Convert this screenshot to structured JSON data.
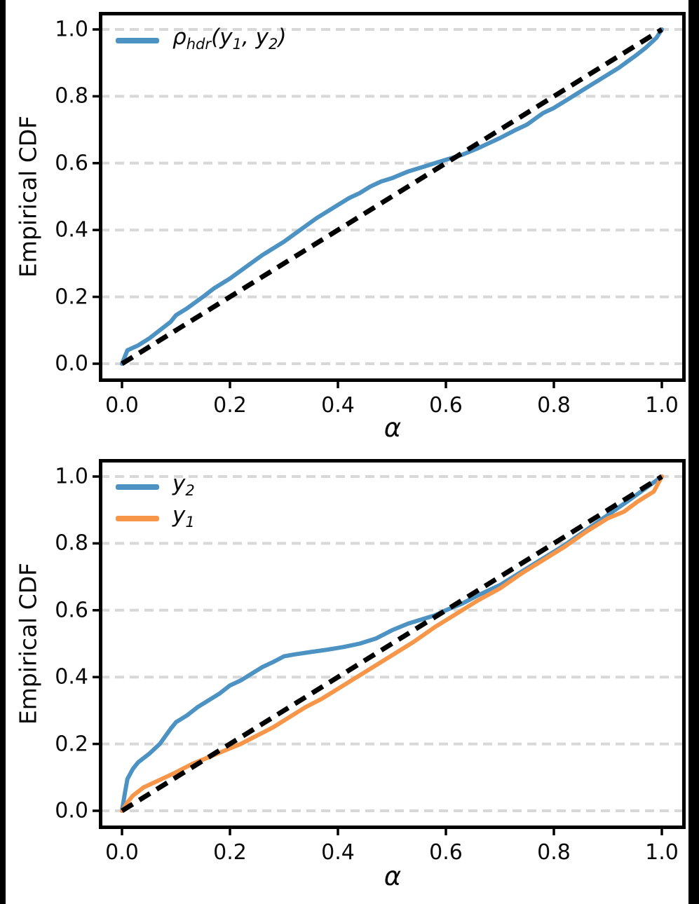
{
  "figure": {
    "background": "#ffffff",
    "border_color": "#000000",
    "grid_color": "#d8d8d8",
    "axis_color": "#000000",
    "text_color": "#0a0a0a"
  },
  "chart_data": [
    {
      "type": "line",
      "title": "",
      "xlabel": "α",
      "ylabel": "Empirical CDF",
      "xlim": [
        0,
        1
      ],
      "ylim": [
        0,
        1
      ],
      "grid": "horizontal-dashed",
      "x_ticks": [
        0.0,
        0.2,
        0.4,
        0.6,
        0.8,
        1.0
      ],
      "x_tick_labels": [
        "0.0",
        "0.2",
        "0.4",
        "0.6",
        "0.8",
        "1.0"
      ],
      "y_ticks": [
        0.0,
        0.2,
        0.4,
        0.6,
        0.8,
        1.0
      ],
      "y_tick_labels": [
        "0.0",
        "0.2",
        "0.4",
        "0.6",
        "0.8",
        "1.0"
      ],
      "legend_position": "upper left",
      "reference_line": {
        "name": "diagonal",
        "style": "dashed",
        "color": "#000000",
        "from": [
          0,
          0
        ],
        "to": [
          1,
          1
        ]
      },
      "series": [
        {
          "name": "rho_hdr",
          "label": "ρ_{hdr}(y_{1}, y_{2})",
          "color": "#4c92c3",
          "x": [
            0.0,
            0.01,
            0.03,
            0.05,
            0.07,
            0.09,
            0.1,
            0.12,
            0.15,
            0.17,
            0.2,
            0.23,
            0.26,
            0.3,
            0.33,
            0.36,
            0.4,
            0.42,
            0.44,
            0.46,
            0.48,
            0.5,
            0.53,
            0.56,
            0.58,
            0.6,
            0.63,
            0.66,
            0.7,
            0.73,
            0.75,
            0.78,
            0.8,
            0.83,
            0.85,
            0.88,
            0.9,
            0.92,
            0.95,
            0.97,
            0.99,
            1.0
          ],
          "y": [
            0.0,
            0.04,
            0.055,
            0.075,
            0.1,
            0.125,
            0.145,
            0.165,
            0.2,
            0.225,
            0.255,
            0.29,
            0.325,
            0.365,
            0.4,
            0.435,
            0.475,
            0.495,
            0.51,
            0.53,
            0.545,
            0.555,
            0.575,
            0.59,
            0.6,
            0.61,
            0.625,
            0.645,
            0.675,
            0.7,
            0.715,
            0.75,
            0.765,
            0.795,
            0.815,
            0.845,
            0.865,
            0.885,
            0.92,
            0.945,
            0.975,
            1.0
          ]
        }
      ]
    },
    {
      "type": "line",
      "title": "",
      "xlabel": "α",
      "ylabel": "Empirical CDF",
      "xlim": [
        0,
        1
      ],
      "ylim": [
        0,
        1
      ],
      "grid": "horizontal-dashed",
      "x_ticks": [
        0.0,
        0.2,
        0.4,
        0.6,
        0.8,
        1.0
      ],
      "x_tick_labels": [
        "0.0",
        "0.2",
        "0.4",
        "0.6",
        "0.8",
        "1.0"
      ],
      "y_ticks": [
        0.0,
        0.2,
        0.4,
        0.6,
        0.8,
        1.0
      ],
      "y_tick_labels": [
        "0.0",
        "0.2",
        "0.4",
        "0.6",
        "0.8",
        "1.0"
      ],
      "legend_position": "upper left",
      "reference_line": {
        "name": "diagonal",
        "style": "dashed",
        "color": "#000000",
        "from": [
          0,
          0
        ],
        "to": [
          1,
          1
        ]
      },
      "series": [
        {
          "name": "y2",
          "label": "y_{2}",
          "color": "#4c92c3",
          "x": [
            0.0,
            0.005,
            0.01,
            0.02,
            0.03,
            0.05,
            0.07,
            0.09,
            0.1,
            0.12,
            0.14,
            0.16,
            0.18,
            0.2,
            0.22,
            0.24,
            0.26,
            0.28,
            0.3,
            0.32,
            0.35,
            0.38,
            0.41,
            0.44,
            0.47,
            0.5,
            0.53,
            0.56,
            0.58,
            0.6,
            0.63,
            0.66,
            0.7,
            0.74,
            0.78,
            0.82,
            0.86,
            0.9,
            0.94,
            0.97,
            1.0
          ],
          "y": [
            0.0,
            0.05,
            0.095,
            0.125,
            0.145,
            0.17,
            0.2,
            0.245,
            0.265,
            0.285,
            0.31,
            0.33,
            0.35,
            0.375,
            0.39,
            0.41,
            0.43,
            0.445,
            0.462,
            0.468,
            0.475,
            0.482,
            0.49,
            0.5,
            0.515,
            0.54,
            0.56,
            0.575,
            0.585,
            0.6,
            0.62,
            0.645,
            0.675,
            0.715,
            0.755,
            0.795,
            0.84,
            0.885,
            0.93,
            0.965,
            1.0
          ]
        },
        {
          "name": "y1",
          "label": "y_{1}",
          "color": "#f79649",
          "x": [
            0.0,
            0.01,
            0.02,
            0.04,
            0.06,
            0.08,
            0.1,
            0.13,
            0.16,
            0.19,
            0.22,
            0.25,
            0.28,
            0.31,
            0.34,
            0.37,
            0.4,
            0.43,
            0.46,
            0.5,
            0.54,
            0.58,
            0.62,
            0.66,
            0.7,
            0.74,
            0.78,
            0.82,
            0.86,
            0.9,
            0.93,
            0.955,
            0.97,
            0.985,
            1.0
          ],
          "y": [
            0.0,
            0.025,
            0.045,
            0.07,
            0.085,
            0.1,
            0.115,
            0.14,
            0.16,
            0.18,
            0.2,
            0.225,
            0.25,
            0.28,
            0.31,
            0.335,
            0.365,
            0.395,
            0.425,
            0.465,
            0.505,
            0.55,
            0.59,
            0.63,
            0.665,
            0.71,
            0.75,
            0.79,
            0.835,
            0.875,
            0.895,
            0.925,
            0.94,
            0.955,
            1.0
          ]
        }
      ]
    }
  ]
}
